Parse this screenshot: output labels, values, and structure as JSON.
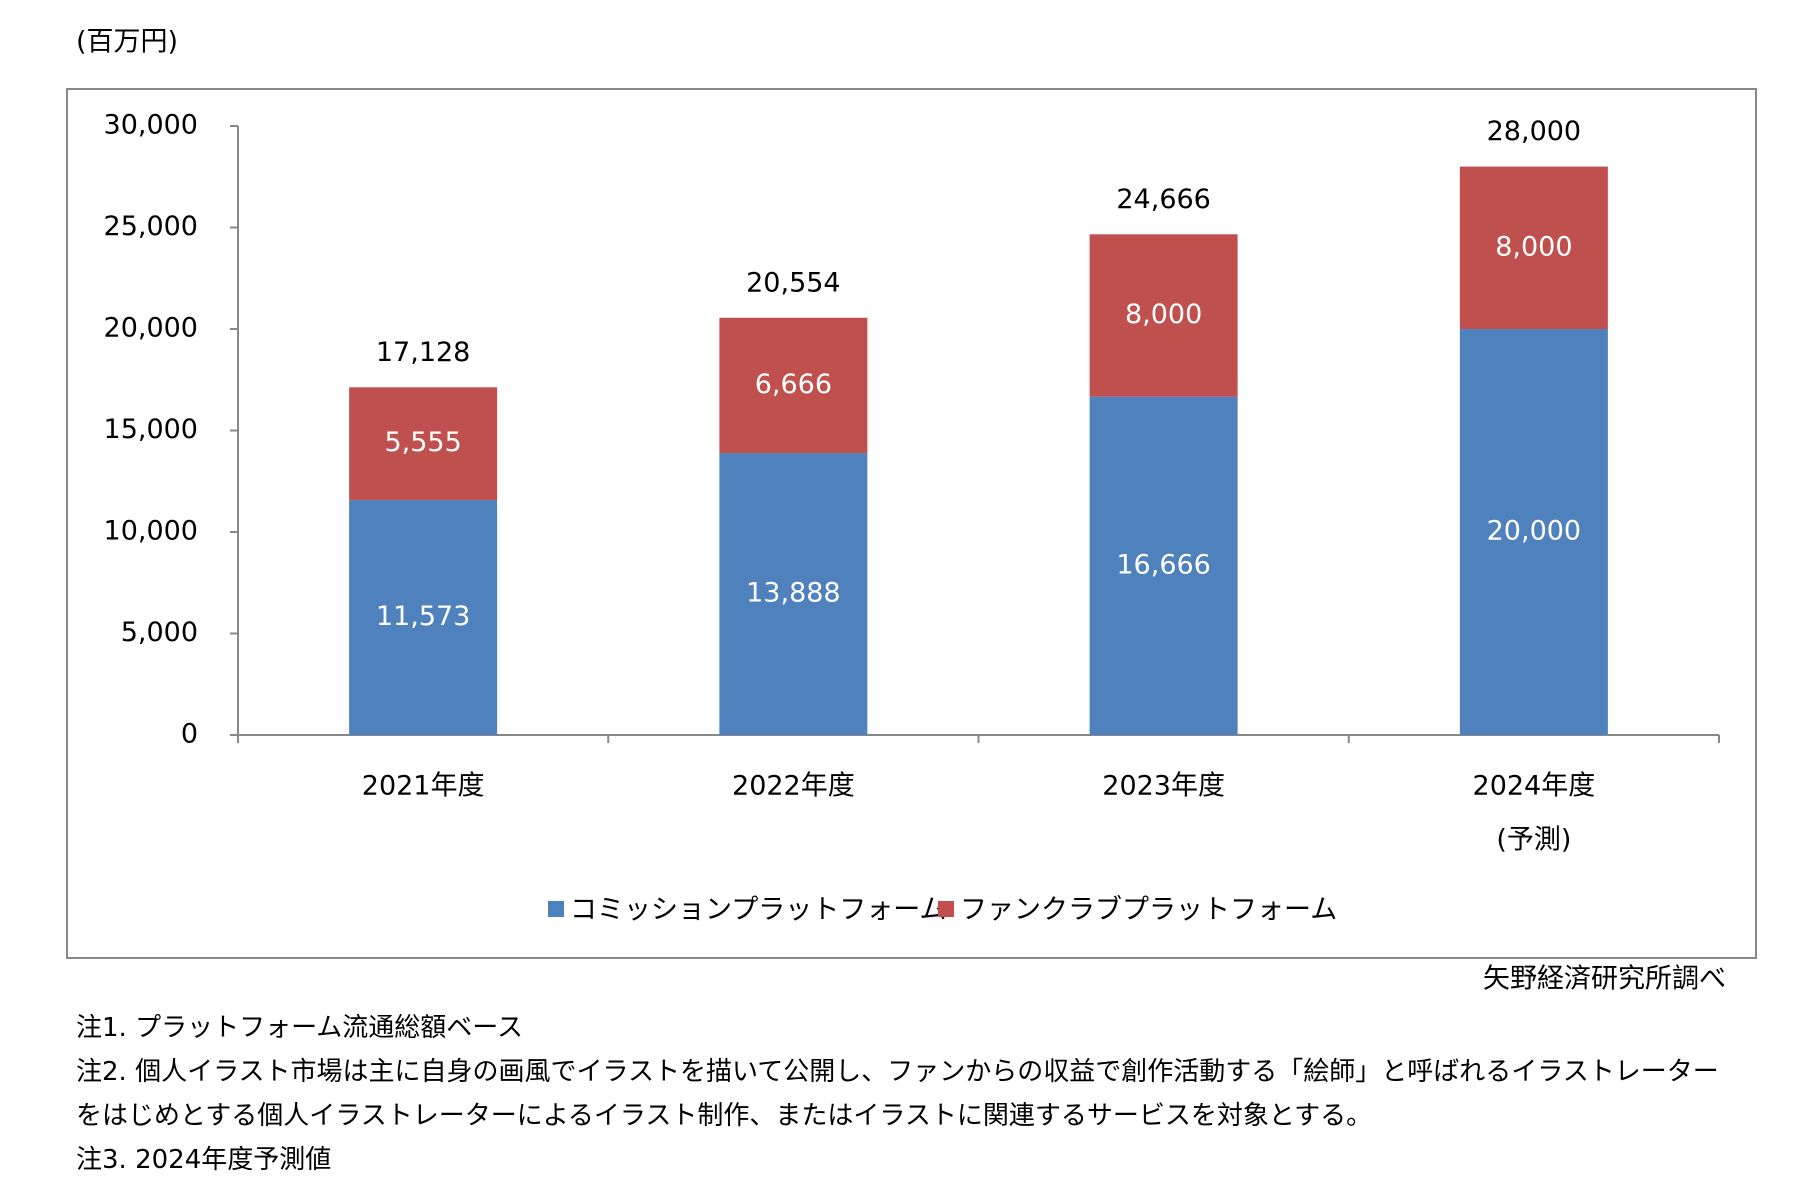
{
  "chart_data": {
    "type": "stacked_bar",
    "y_unit_label": "(百万円)",
    "categories": [
      "2021年度",
      "2022年度",
      "2023年度",
      "2024年度"
    ],
    "category_sublabels": [
      null,
      null,
      null,
      "(予測)"
    ],
    "series": [
      {
        "name": "コミッションプラットフォーム",
        "color": "#4f81bd",
        "values": [
          11573,
          13888,
          16666,
          20000
        ],
        "value_labels": [
          "11,573",
          "13,888",
          "16,666",
          "20,000"
        ]
      },
      {
        "name": "ファンクラブプラットフォーム",
        "color": "#c0504d",
        "values": [
          5555,
          6666,
          8000,
          8000
        ],
        "value_labels": [
          "5,555",
          "6,666",
          "8,000",
          "8,000"
        ]
      }
    ],
    "totals": [
      17128,
      20554,
      24666,
      28000
    ],
    "total_labels": [
      "17,128",
      "20,554",
      "24,666",
      "28,000"
    ],
    "ylim": [
      0,
      30000
    ],
    "yticks": [
      0,
      {
        "value": 5000,
        "label": "5,000"
      },
      {
        "value": 10000,
        "label": "10,000"
      },
      {
        "value": 15000,
        "label": "15,000"
      },
      {
        "value": 20000,
        "label": "20,000"
      },
      {
        "value": 25000,
        "label": "25,000"
      },
      {
        "value": 30000,
        "label": "30,000"
      }
    ],
    "grid": false,
    "legend": "bottom"
  },
  "source": "矢野経済研究所調べ",
  "notes": [
    "注1. プラットフォーム流通総額ベース",
    "注2. 個人イラスト市場は主に自身の画風でイラストを描いて公開し、ファンからの収益で創作活動する「絵師」と呼ばれるイラストレーターをはじめとする個人イラストレーターによるイラスト制作、またはイラストに関連するサービスを対象とする。",
    "注3. 2024年度予測値"
  ]
}
